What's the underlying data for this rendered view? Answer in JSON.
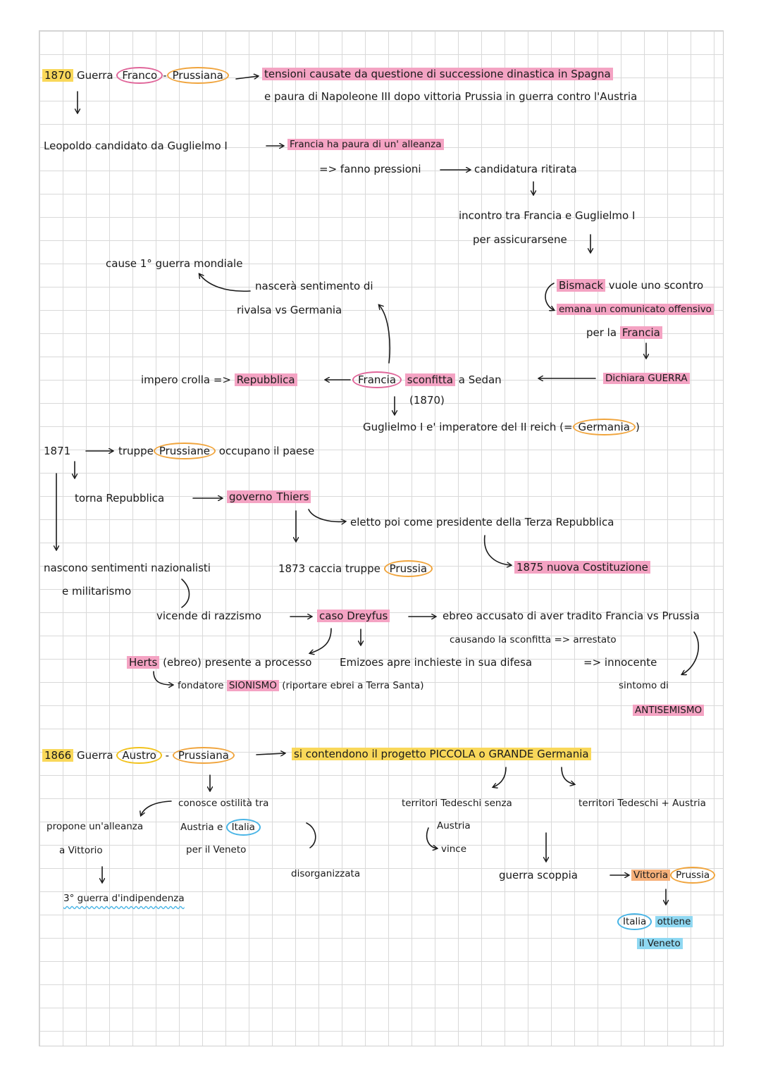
{
  "s1870": {
    "year": "1870",
    "guerra": "Guerra",
    "franco": "Franco",
    "dash": "-",
    "prussiana": "Prussiana",
    "tensioni": "tensioni causate da questione di successione dinastica in Spagna",
    "paura": "e  paura  di Napoleone III dopo vittoria Prussia in guerra contro l'Austria",
    "leopoldo": "Leopoldo candidato da Guglielmo I",
    "francia_paura": "Francia ha paura di un' alleanza",
    "pressioni": "=> fanno pressioni",
    "ritirata": "candidatura ritirata",
    "incontro": "incontro  tra Francia e Guglielmo I",
    "assicurarsene": "per  assicurarsene",
    "bismack": "Bismack",
    "scontro": "vuole uno scontro",
    "emana": "emana un comunicato offensivo",
    "per_la": "per  la",
    "francia2": "Francia",
    "dichiara": "Dichiara GUERRA",
    "francia_sconfitta": "Francia",
    "sconfitta": "sconfitta",
    "a_sedan": "a Sedan",
    "anno_paren": "(1870)",
    "impero_crolla": "impero crolla =>",
    "repubblica": "Repubblica",
    "guglielmo_imp": "Guglielmo I e' imperatore del II reich (=",
    "germania": "Germania",
    "close_paren": ")",
    "nascera": "nascerà sentimento di",
    "rivalsa": "rivalsa vs Germania",
    "cause": "cause 1° guerra mondiale"
  },
  "s1871": {
    "year": "1871",
    "truppe": "truppe",
    "prussiane": "Prussiane",
    "occupano": "occupano il paese",
    "torna": "torna Repubblica",
    "governo": "governo",
    "thiers": "Thiers",
    "eletto": "eletto poi come presidente della Terza Repubblica",
    "caccia": "1873 caccia truppe",
    "prussia": "Prussia",
    "costituzione": "1875 nuova Costituzione",
    "nascono": "nascono sentimenti nazionalisti",
    "militarismo": "e  militarismo",
    "vicende": "vicende di razzismo",
    "caso": "caso Dreyfus",
    "ebreo": "ebreo accusato di aver tradito Francia vs Prussia",
    "causando": "causando la sconfitta  => arrestato",
    "herts": "Herts",
    "ebreo_presente": "(ebreo) presente a processo",
    "emizoes": "Emizoes apre inchieste in sua difesa",
    "innocente": "=> innocente",
    "fondatore": "fondatore",
    "sionismo": "SIONISMO",
    "riportare": "(riportare ebrei a Terra Santa)",
    "sintomo": "sintomo di",
    "antisemismo": "ANTISEMISMO"
  },
  "s1866": {
    "year": "1866",
    "guerra": "Guerra",
    "austro": "Austro",
    "dash": "-",
    "prussiana": "Prussiana",
    "contendono": "si contendono  il progetto  PICCOLA o GRANDE Germania",
    "conosce": "conosce ostilità tra",
    "austria_e": "Austria  e",
    "italia": "Italia",
    "veneto_per": "per il Veneto",
    "disorganizzata": "disorganizzata",
    "propone": "propone un'alleanza",
    "vittorio": "a  Vittorio",
    "indipendenza": "3° guerra d'indipendenza",
    "territori_senza": "territori Tedeschi senza",
    "austria2": "Austria",
    "vince": "vince",
    "territori_piu": "territori Tedeschi + Austria",
    "guerra_scoppia": "guerra scoppia",
    "vittoria": "Vittoria",
    "prussia": "Prussia",
    "italia2": "Italia",
    "ottiene": "ottiene",
    "il_veneto": "il Veneto"
  },
  "colors": {
    "pink_highlight": "#f4a3c3",
    "yellow_highlight": "#f9d85a",
    "orange_highlight": "#f6b07a",
    "blue_highlight": "#8fd8f2",
    "pink_ring": "#e0669a",
    "orange_ring": "#f0a43c",
    "yellow_ring": "#f2c21b",
    "blue_ring": "#4ab5e6"
  }
}
